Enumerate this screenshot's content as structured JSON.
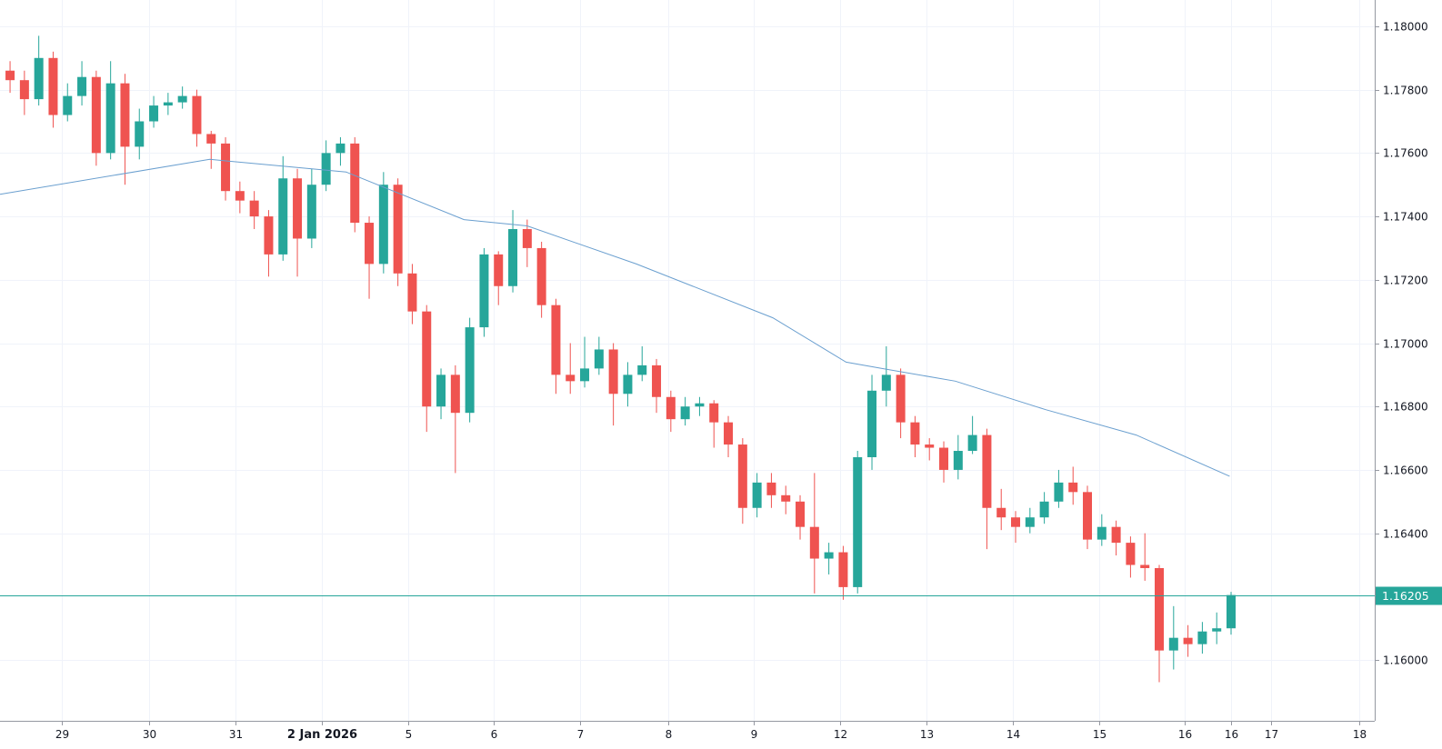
{
  "chart_data": {
    "type": "candlestick",
    "title": "",
    "colors": {
      "up": "#26a69a",
      "down": "#ef5350",
      "ma": "#6a9fcf",
      "grid": "#f0f3fa",
      "axis": "#9598a1",
      "last_price": "#26a69a"
    },
    "ylim": [
      1.15808,
      1.18083
    ],
    "y_ticks": [
      "1.18000",
      "1.17800",
      "1.17600",
      "1.17400",
      "1.17200",
      "1.17000",
      "1.16800",
      "1.16600",
      "1.16400",
      "1.16000"
    ],
    "x_ticks": [
      {
        "label": "29",
        "t": 3.6
      },
      {
        "label": "30",
        "t": 9.7
      },
      {
        "label": "31",
        "t": 15.7
      },
      {
        "label": "2 Jan 2026",
        "t": 21.7,
        "bold": true
      },
      {
        "label": "5",
        "t": 27.7
      },
      {
        "label": "6",
        "t": 33.7
      },
      {
        "label": "7",
        "t": 39.7
      },
      {
        "label": "8",
        "t": 45.8
      },
      {
        "label": "9",
        "t": 51.8
      },
      {
        "label": "12",
        "t": 57.8
      },
      {
        "label": "13",
        "t": 63.8
      },
      {
        "label": "14",
        "t": 69.8
      },
      {
        "label": "15",
        "t": 75.8
      },
      {
        "label": "16",
        "t": 81.8
      },
      {
        "label": "16",
        "t": 85
      },
      {
        "label": "17",
        "t": 87.8
      },
      {
        "label": "18",
        "t": 93.9
      }
    ],
    "xlim": [
      -0.7,
      95.0
    ],
    "last_price": "1.16205",
    "close": [
      1.1783,
      1.1777,
      1.179,
      1.1772,
      1.1778,
      1.1784,
      1.176,
      1.1782,
      1.1762,
      1.177,
      1.1775,
      1.1776,
      1.1778,
      1.1766,
      1.1763,
      1.1748,
      1.1745,
      1.174,
      1.1728,
      1.1752,
      1.1733,
      1.175,
      1.176,
      1.1763,
      1.1738,
      1.1725,
      1.175,
      1.1722,
      1.171,
      1.168,
      1.169,
      1.1678,
      1.1705,
      1.1728,
      1.1718,
      1.1736,
      1.173,
      1.1712,
      1.169,
      1.1688,
      1.1692,
      1.1698,
      1.1684,
      1.169,
      1.1693,
      1.1683,
      1.1676,
      1.168,
      1.1681,
      1.1675,
      1.1668,
      1.1648,
      1.1656,
      1.1652,
      1.165,
      1.1642,
      1.1632,
      1.1634,
      1.1623,
      1.1664,
      1.1685,
      1.169,
      1.1675,
      1.1668,
      1.1667,
      1.166,
      1.1666,
      1.1671,
      1.1648,
      1.1645,
      1.1642,
      1.1645,
      1.165,
      1.1656,
      1.1653,
      1.1638,
      1.1642,
      1.1637,
      1.163,
      1.1629,
      1.1603,
      1.1607,
      1.1605,
      1.1609,
      1.161,
      1.16205
    ],
    "open_first": 1.1786,
    "high": [
      1.1789,
      1.1786,
      1.1797,
      1.1792,
      1.1782,
      1.1789,
      1.1786,
      1.1789,
      1.1785,
      1.1774,
      1.1778,
      1.1779,
      1.1781,
      1.178,
      1.1767,
      1.1765,
      1.1751,
      1.1748,
      1.1742,
      1.1759,
      1.1755,
      1.1755,
      1.1764,
      1.1765,
      1.1765,
      1.174,
      1.1754,
      1.1752,
      1.1725,
      1.1712,
      1.1692,
      1.1693,
      1.1708,
      1.173,
      1.1729,
      1.1742,
      1.1739,
      1.1732,
      1.1714,
      1.17,
      1.1702,
      1.1702,
      1.17,
      1.1694,
      1.1699,
      1.1695,
      1.1685,
      1.1683,
      1.1683,
      1.1682,
      1.1677,
      1.167,
      1.1659,
      1.1659,
      1.1655,
      1.1652,
      1.1659,
      1.1637,
      1.1636,
      1.1666,
      1.169,
      1.1699,
      1.1692,
      1.1677,
      1.167,
      1.1669,
      1.1671,
      1.1677,
      1.1673,
      1.1654,
      1.1647,
      1.1648,
      1.1653,
      1.166,
      1.1661,
      1.1655,
      1.1646,
      1.1644,
      1.1639,
      1.164,
      1.163,
      1.1617,
      1.1611,
      1.1612,
      1.1615,
      1.16215
    ],
    "low": [
      1.1779,
      1.1772,
      1.1775,
      1.1768,
      1.177,
      1.1775,
      1.1756,
      1.1758,
      1.175,
      1.1758,
      1.1768,
      1.1772,
      1.1774,
      1.1762,
      1.1755,
      1.1745,
      1.1741,
      1.1736,
      1.1721,
      1.1726,
      1.1721,
      1.173,
      1.1748,
      1.1756,
      1.1735,
      1.1714,
      1.1722,
      1.1718,
      1.1706,
      1.1672,
      1.1676,
      1.1659,
      1.1675,
      1.1702,
      1.1712,
      1.1716,
      1.1724,
      1.1708,
      1.1684,
      1.1684,
      1.1686,
      1.169,
      1.1674,
      1.168,
      1.1688,
      1.1678,
      1.1672,
      1.1674,
      1.1677,
      1.1667,
      1.1664,
      1.1643,
      1.1645,
      1.1648,
      1.1646,
      1.1638,
      1.1621,
      1.1627,
      1.1619,
      1.1621,
      1.166,
      1.168,
      1.167,
      1.1664,
      1.1663,
      1.1656,
      1.1657,
      1.1665,
      1.1635,
      1.1641,
      1.1637,
      1.164,
      1.1643,
      1.1648,
      1.1649,
      1.1635,
      1.1636,
      1.1633,
      1.1626,
      1.1625,
      1.1593,
      1.1597,
      1.1601,
      1.1602,
      1.1605,
      1.1608
    ],
    "moving_average": [
      [
        -0.7,
        1.1747
      ],
      [
        13.9,
        1.1758
      ],
      [
        23.4,
        1.1754
      ],
      [
        31.6,
        1.1739
      ],
      [
        36,
        1.1737
      ],
      [
        43.6,
        1.1725
      ],
      [
        53.1,
        1.1708
      ],
      [
        58.2,
        1.1694
      ],
      [
        60.7,
        1.1692
      ],
      [
        65.8,
        1.1688
      ],
      [
        72.1,
        1.1679
      ],
      [
        78.4,
        1.1671
      ],
      [
        84.9,
        1.1658
      ]
    ]
  }
}
